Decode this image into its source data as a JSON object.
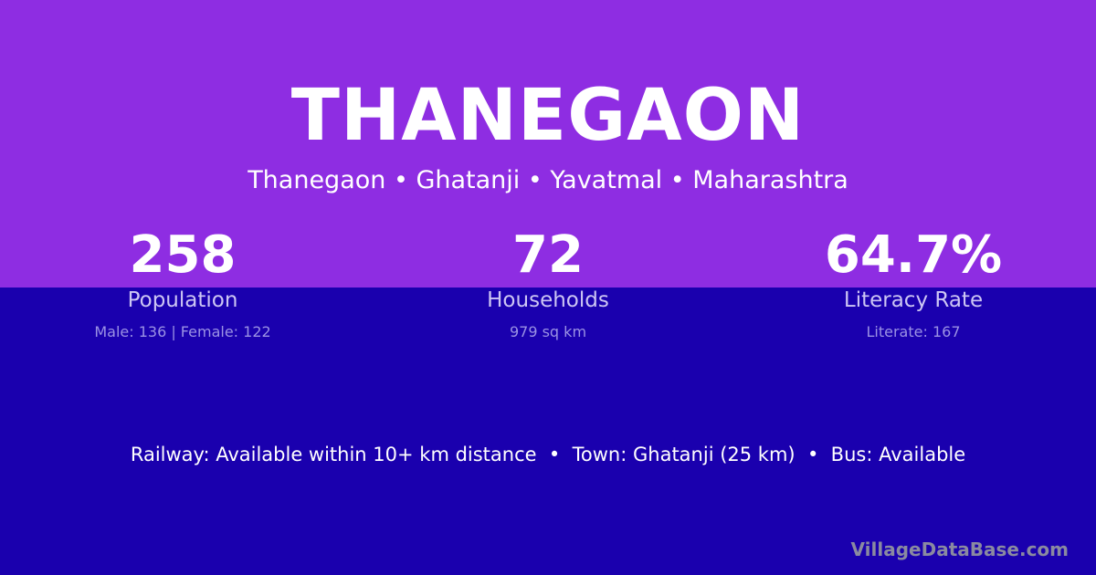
{
  "title": "THANEGAON",
  "breadcrumb": "Thanegaon • Ghatanji • Yavatmal • Maharashtra",
  "stats": [
    {
      "value": "258",
      "label": "Population",
      "detail": "Male: 136 | Female: 122"
    },
    {
      "value": "72",
      "label": "Households",
      "detail": "979 sq km"
    },
    {
      "value": "64.7%",
      "label": "Literacy Rate",
      "detail": "Literate: 167"
    }
  ],
  "facts": "Railway: Available within 10+ km distance  •  Town: Ghatanji (25 km)  •  Bus: Available",
  "brand": "VillageDataBase.com",
  "colors": {
    "top": "#8e2de2",
    "bottom": "#1a00ae"
  }
}
